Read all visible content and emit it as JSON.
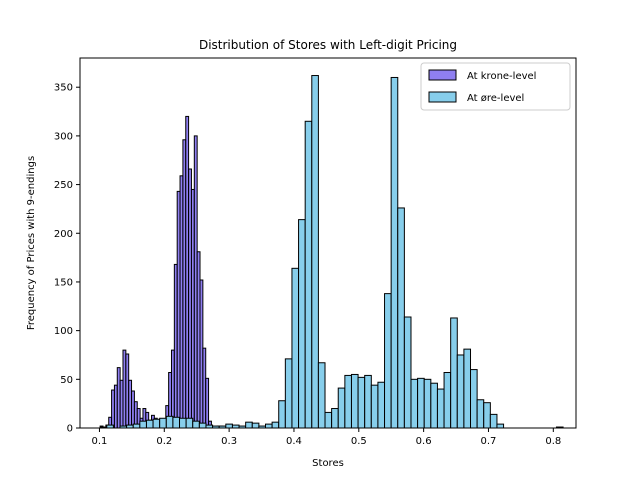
{
  "chart_data": {
    "type": "bar",
    "title": "Distribution of Stores with Left-digit Pricing",
    "xlabel": "Stores",
    "ylabel": "Frequency of Prices with 9-endings",
    "xlim": [
      0.07,
      0.835
    ],
    "ylim": [
      0,
      380
    ],
    "x_ticks": [
      0.1,
      0.2,
      0.3,
      0.4,
      0.5,
      0.6,
      0.7,
      0.8
    ],
    "x_tick_labels": [
      "0.1",
      "0.2",
      "0.3",
      "0.4",
      "0.5",
      "0.6",
      "0.7",
      "0.8"
    ],
    "y_ticks": [
      0,
      50,
      100,
      150,
      200,
      250,
      300,
      350
    ],
    "y_tick_labels": [
      "0",
      "50",
      "100",
      "150",
      "200",
      "250",
      "300",
      "350"
    ],
    "grid": false,
    "legend_position": "top-right",
    "series": [
      {
        "name": "At krone-level",
        "color": "#7b68ee",
        "opacity": 0.85,
        "bins": [
          [
            0.1011,
            0.1055,
            2
          ],
          [
            0.1055,
            0.1099,
            0
          ],
          [
            0.1099,
            0.1143,
            3
          ],
          [
            0.1143,
            0.1187,
            11
          ],
          [
            0.1187,
            0.1231,
            39
          ],
          [
            0.1231,
            0.1275,
            44
          ],
          [
            0.1275,
            0.1319,
            62
          ],
          [
            0.1319,
            0.1363,
            49
          ],
          [
            0.1363,
            0.1407,
            80
          ],
          [
            0.1407,
            0.1451,
            76
          ],
          [
            0.1451,
            0.1495,
            49
          ],
          [
            0.1495,
            0.1539,
            38
          ],
          [
            0.1539,
            0.1583,
            27
          ],
          [
            0.1583,
            0.1627,
            20
          ],
          [
            0.1627,
            0.1671,
            10
          ],
          [
            0.1671,
            0.1715,
            20
          ],
          [
            0.1715,
            0.1759,
            16
          ],
          [
            0.1759,
            0.1803,
            8
          ],
          [
            0.1803,
            0.1847,
            13
          ],
          [
            0.1847,
            0.1891,
            10
          ],
          [
            0.1891,
            0.1935,
            6
          ],
          [
            0.1935,
            0.1979,
            5
          ],
          [
            0.1979,
            0.2023,
            8
          ],
          [
            0.2023,
            0.2067,
            23
          ],
          [
            0.2067,
            0.2111,
            57
          ],
          [
            0.2111,
            0.2155,
            80
          ],
          [
            0.2155,
            0.2199,
            168
          ],
          [
            0.2199,
            0.2243,
            243
          ],
          [
            0.2243,
            0.2287,
            259
          ],
          [
            0.2287,
            0.2331,
            296
          ],
          [
            0.2331,
            0.2375,
            320
          ],
          [
            0.2375,
            0.2419,
            266
          ],
          [
            0.2419,
            0.2463,
            245
          ],
          [
            0.2463,
            0.2507,
            300
          ],
          [
            0.2507,
            0.2551,
            181
          ],
          [
            0.2551,
            0.2595,
            152
          ],
          [
            0.2595,
            0.2639,
            82
          ],
          [
            0.2639,
            0.2683,
            51
          ],
          [
            0.2683,
            0.2727,
            7
          ],
          [
            0.2727,
            0.2771,
            0
          ],
          [
            0.2771,
            0.2815,
            0
          ],
          [
            0.2815,
            0.2859,
            2
          ],
          [
            0.2859,
            0.2903,
            2
          ],
          [
            0.2903,
            0.2947,
            0
          ],
          [
            0.2947,
            0.2991,
            0
          ],
          [
            0.2991,
            0.3035,
            3
          ]
        ]
      },
      {
        "name": "At øre-level",
        "color": "#87ceeb",
        "opacity": 1,
        "bins": [
          [
            0.1011,
            0.1113,
            1
          ],
          [
            0.1113,
            0.1215,
            3
          ],
          [
            0.1215,
            0.1317,
            0
          ],
          [
            0.1317,
            0.1419,
            2
          ],
          [
            0.1419,
            0.1521,
            3
          ],
          [
            0.1521,
            0.1623,
            4
          ],
          [
            0.1623,
            0.1725,
            7
          ],
          [
            0.1725,
            0.1827,
            8
          ],
          [
            0.1827,
            0.1929,
            9
          ],
          [
            0.1929,
            0.2031,
            10
          ],
          [
            0.2031,
            0.2133,
            12
          ],
          [
            0.2133,
            0.2235,
            11
          ],
          [
            0.2235,
            0.2337,
            10
          ],
          [
            0.2337,
            0.2439,
            10
          ],
          [
            0.2439,
            0.2541,
            7
          ],
          [
            0.2541,
            0.2643,
            5
          ],
          [
            0.2643,
            0.2745,
            3
          ],
          [
            0.2745,
            0.2847,
            2
          ],
          [
            0.2847,
            0.2949,
            2
          ],
          [
            0.2949,
            0.3051,
            4
          ],
          [
            0.3051,
            0.3153,
            3
          ],
          [
            0.3153,
            0.3255,
            2
          ],
          [
            0.3255,
            0.3357,
            6
          ],
          [
            0.3357,
            0.3459,
            5
          ],
          [
            0.3459,
            0.3561,
            2
          ],
          [
            0.3561,
            0.3663,
            4
          ],
          [
            0.3663,
            0.3765,
            6
          ],
          [
            0.3765,
            0.3867,
            28
          ],
          [
            0.3867,
            0.3969,
            71
          ],
          [
            0.3969,
            0.4071,
            164
          ],
          [
            0.4071,
            0.4173,
            214
          ],
          [
            0.4173,
            0.4275,
            315
          ],
          [
            0.4275,
            0.4377,
            362
          ],
          [
            0.4377,
            0.4479,
            67
          ],
          [
            0.4479,
            0.4581,
            16
          ],
          [
            0.4581,
            0.4683,
            20
          ],
          [
            0.4683,
            0.4785,
            41
          ],
          [
            0.4785,
            0.4887,
            54
          ],
          [
            0.4887,
            0.4989,
            55
          ],
          [
            0.4989,
            0.5091,
            52
          ],
          [
            0.5091,
            0.5193,
            54
          ],
          [
            0.5193,
            0.5295,
            44
          ],
          [
            0.5295,
            0.5397,
            47
          ],
          [
            0.5397,
            0.5499,
            138
          ],
          [
            0.5499,
            0.5601,
            360
          ],
          [
            0.5601,
            0.5703,
            226
          ],
          [
            0.5703,
            0.5805,
            114
          ],
          [
            0.5805,
            0.5907,
            50
          ],
          [
            0.5907,
            0.6009,
            51
          ],
          [
            0.6009,
            0.6111,
            50
          ],
          [
            0.6111,
            0.6213,
            46
          ],
          [
            0.6213,
            0.6315,
            40
          ],
          [
            0.6315,
            0.6417,
            57
          ],
          [
            0.6417,
            0.6519,
            113
          ],
          [
            0.6519,
            0.6621,
            75
          ],
          [
            0.6621,
            0.6723,
            81
          ],
          [
            0.6723,
            0.6825,
            60
          ],
          [
            0.6825,
            0.6927,
            29
          ],
          [
            0.6927,
            0.7029,
            26
          ],
          [
            0.7029,
            0.7131,
            14
          ],
          [
            0.7131,
            0.7233,
            4
          ],
          [
            0.7233,
            0.7335,
            0
          ],
          [
            0.7335,
            0.7437,
            0
          ],
          [
            0.7437,
            0.7539,
            0
          ],
          [
            0.7539,
            0.7641,
            0
          ],
          [
            0.7641,
            0.7743,
            0
          ],
          [
            0.7743,
            0.7845,
            0
          ],
          [
            0.7845,
            0.7947,
            0
          ],
          [
            0.7947,
            0.8049,
            0
          ],
          [
            0.8049,
            0.8151,
            1
          ]
        ]
      }
    ]
  }
}
